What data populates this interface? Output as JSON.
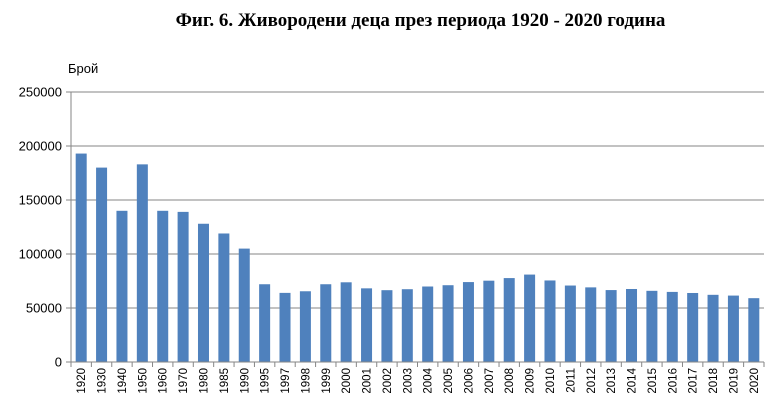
{
  "chart_data": {
    "type": "bar",
    "title": "Фиг. 6. Живородени деца през периода 1920 - 2020 година",
    "ylabel": "Брой",
    "xlabel": "",
    "ylim": [
      0,
      250000
    ],
    "yticks": [
      0,
      50000,
      100000,
      150000,
      200000,
      250000
    ],
    "grid": true,
    "legend": "none",
    "bar_color": "#4f81bd",
    "categories": [
      "1920",
      "1930",
      "1940",
      "1950",
      "1960",
      "1970",
      "1980",
      "1985",
      "1990",
      "1995",
      "1997",
      "1998",
      "1999",
      "2000",
      "2001",
      "2002",
      "2003",
      "2004",
      "2005",
      "2006",
      "2007",
      "2008",
      "2009",
      "2010",
      "2011",
      "2012",
      "2013",
      "2014",
      "2015",
      "2016",
      "2017",
      "2018",
      "2019",
      "2020"
    ],
    "values": [
      193000,
      180000,
      140000,
      183000,
      140000,
      139000,
      128000,
      119000,
      105000,
      72000,
      64000,
      65500,
      72000,
      73800,
      68200,
      66500,
      67400,
      69900,
      71100,
      74000,
      75300,
      77700,
      80950,
      75500,
      70800,
      69100,
      66600,
      67600,
      65900,
      64900,
      63900,
      62200,
      61500,
      59100
    ]
  }
}
